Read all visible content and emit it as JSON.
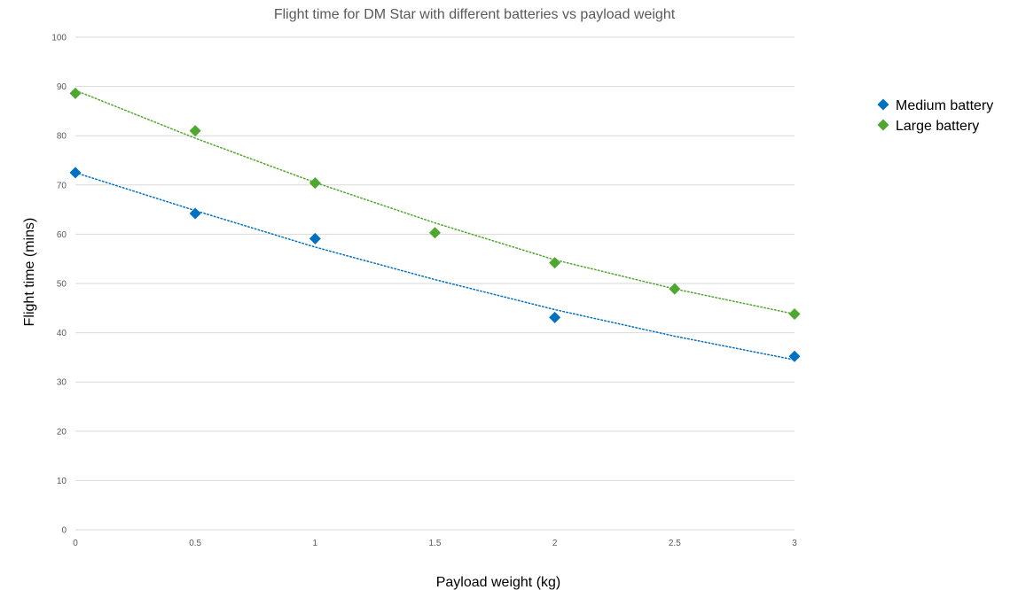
{
  "chart_data": {
    "type": "scatter",
    "title": "Flight time for DM Star with different batteries vs payload weight",
    "xlabel": "Payload weight (kg)",
    "ylabel": "Flight time (mins)",
    "xlim": [
      0,
      3
    ],
    "ylim": [
      0,
      100
    ],
    "x_ticks": [
      "0",
      "0.5",
      "1",
      "1.5",
      "2",
      "2.5",
      "3"
    ],
    "y_ticks": [
      "0",
      "10",
      "20",
      "30",
      "40",
      "50",
      "60",
      "70",
      "80",
      "90",
      "100"
    ],
    "grid": true,
    "legend_position": "right",
    "series": [
      {
        "name": "Medium battery",
        "color": "#0070c0",
        "marker": "diamond",
        "trendline": "dotted",
        "points": [
          {
            "x": 0,
            "y": 72.5
          },
          {
            "x": 0.5,
            "y": 64.2
          },
          {
            "x": 1,
            "y": 59.1
          },
          {
            "x": 2,
            "y": 43.1
          },
          {
            "x": 3,
            "y": 35.2
          }
        ],
        "trend": [
          {
            "x": 0,
            "y": 72.5
          },
          {
            "x": 0.5,
            "y": 64.8
          },
          {
            "x": 1,
            "y": 57.4
          },
          {
            "x": 1.5,
            "y": 50.8
          },
          {
            "x": 2,
            "y": 44.7
          },
          {
            "x": 2.5,
            "y": 39.3
          },
          {
            "x": 3,
            "y": 34.5
          }
        ]
      },
      {
        "name": "Large battery",
        "color": "#4ea72e",
        "marker": "diamond",
        "trendline": "dotted",
        "points": [
          {
            "x": 0,
            "y": 88.6
          },
          {
            "x": 0.5,
            "y": 81.0
          },
          {
            "x": 1,
            "y": 70.4
          },
          {
            "x": 1.5,
            "y": 60.3
          },
          {
            "x": 2,
            "y": 54.2
          },
          {
            "x": 2.5,
            "y": 48.9
          },
          {
            "x": 3,
            "y": 43.8
          }
        ],
        "trend": [
          {
            "x": 0,
            "y": 89.2
          },
          {
            "x": 0.5,
            "y": 79.5
          },
          {
            "x": 1,
            "y": 70.5
          },
          {
            "x": 1.5,
            "y": 62.3
          },
          {
            "x": 2,
            "y": 54.8
          },
          {
            "x": 2.5,
            "y": 48.9
          },
          {
            "x": 3,
            "y": 43.8
          }
        ]
      }
    ]
  }
}
